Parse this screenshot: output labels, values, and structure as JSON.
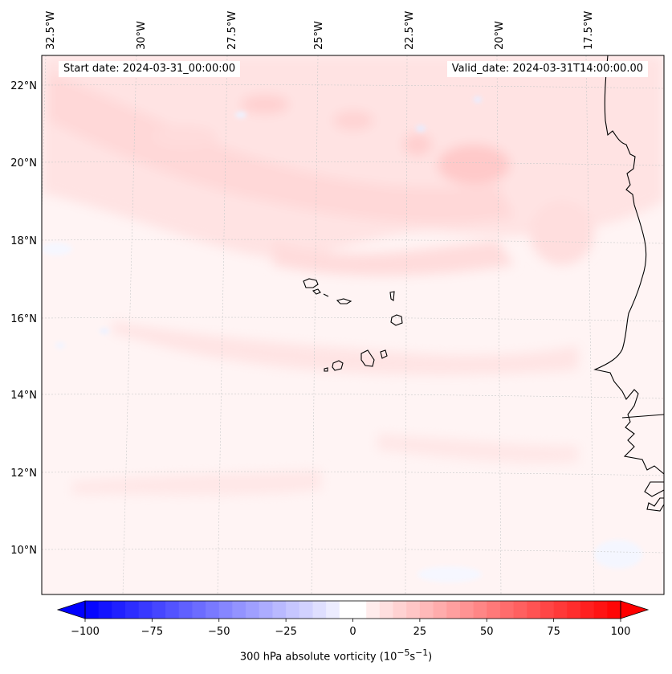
{
  "map": {
    "lon_labels": [
      "32.5°W",
      "30°W",
      "27.5°W",
      "25°W",
      "22.5°W",
      "20°W",
      "17.5°W"
    ],
    "lat_labels": [
      "22°N",
      "20°N",
      "18°N",
      "16°N",
      "14°N",
      "12°N",
      "10°N"
    ],
    "start_date": "Start date: 2024-03-31_00:00:00",
    "valid_date": "Valid_date: 2024-03-31T14:00:00.00"
  },
  "colorbar": {
    "tick_labels": [
      "−100",
      "−75",
      "−50",
      "−25",
      "0",
      "25",
      "50",
      "75",
      "100"
    ],
    "min": -100,
    "max": 100,
    "title_main": "300 hPa absolute vorticity (10",
    "title_exp1": "−5",
    "title_mid": "s",
    "title_exp2": "−1",
    "title_end": ")",
    "low_color": "#0000ff",
    "mid_color": "#ffffff",
    "high_color": "#ff0000"
  }
}
